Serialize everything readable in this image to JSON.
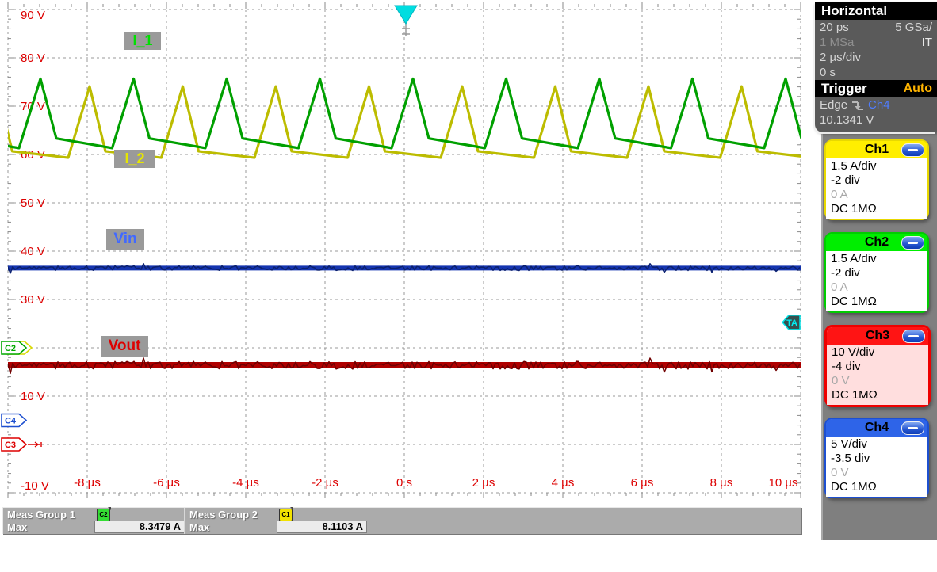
{
  "horizontal": {
    "title": "Horizontal",
    "sample_interval": "20 ps",
    "sample_rate": "5 GSa/",
    "memory": "1 MSa",
    "mode": "IT",
    "timebase": "2 µs/div",
    "position": "0 s"
  },
  "trigger_panel": {
    "title": "Trigger",
    "sweep": "Auto",
    "type": "Edge",
    "source": "Ch4",
    "level": "10.1341 V"
  },
  "channels": [
    {
      "name": "Ch1",
      "scale": "1.5 A/div",
      "position": "-2 div",
      "offset": "0 A",
      "coupling": "DC 1MΩ",
      "header_color": "#ffee00",
      "border_color": "#e8d800",
      "body_color": "#ffffff",
      "selected": false
    },
    {
      "name": "Ch2",
      "scale": "1.5 A/div",
      "position": "-2 div",
      "offset": "0 A",
      "coupling": "DC 1MΩ",
      "header_color": "#00ee00",
      "border_color": "#00cc00",
      "body_color": "#ffffff",
      "selected": false
    },
    {
      "name": "Ch3",
      "scale": "10 V/div",
      "position": "-4 div",
      "offset": "0 V",
      "coupling": "DC 1MΩ",
      "header_color": "#ff1414",
      "border_color": "#ee0000",
      "body_color": "#ffdede",
      "selected": true
    },
    {
      "name": "Ch4",
      "scale": "5 V/div",
      "position": "-3.5 div",
      "offset": "0 V",
      "coupling": "DC 1MΩ",
      "header_color": "#2e64e8",
      "border_color": "#1d4fd0",
      "body_color": "#ffffff",
      "selected": false
    }
  ],
  "trace_labels": {
    "i1": "I_1",
    "i2": "I_2",
    "vin": "Vin",
    "vout": "Vout"
  },
  "ground_markers": [
    {
      "label": "C1",
      "channel": "Ch1",
      "color": "#d8d800",
      "occluded": true
    },
    {
      "label": "C2",
      "channel": "Ch2",
      "color": "#00a800",
      "occluded": false
    },
    {
      "label": "C4",
      "channel": "Ch4",
      "color": "#1d4fd0",
      "occluded": false
    },
    {
      "label": "C3",
      "channel": "Ch3",
      "color": "#dd0000",
      "occluded": false
    }
  ],
  "meas": {
    "groups": [
      {
        "title": "Meas Group 1",
        "source_badge": "C2",
        "badge_color": "#33dd33",
        "stat": "Max",
        "value": "8.3479 A"
      },
      {
        "title": "Meas Group 2",
        "source_badge": "C1",
        "badge_color": "#f2e200",
        "stat": "Max",
        "value": "8.1103 A"
      }
    ]
  },
  "colors": {
    "axis_text": "#dd0000",
    "grid": "#999999",
    "trace_i1": "#00a000",
    "trace_i2": "#bcbc00",
    "trace_vin": "#1535b0",
    "trace_vout": "#b00000",
    "trigger_marker": "#00dde0",
    "label_bg": "#9a9a9a"
  },
  "chart_data": {
    "type": "line",
    "title": "",
    "x_axis": {
      "unit": "µs",
      "us_per_div": 2,
      "range_us": [
        -10,
        10
      ],
      "tick_values_us": [
        -8,
        -6,
        -4,
        -2,
        0,
        2,
        4,
        6,
        8,
        10
      ],
      "tick_labels": [
        "-8 µs",
        "-6 µs",
        "-4 µs",
        "-2 µs",
        "0 s",
        "2 µs",
        "4 µs",
        "6 µs",
        "8 µs",
        "10 µs"
      ]
    },
    "y_axis": {
      "unit": "V",
      "v_per_div": 10,
      "range_v": [
        -10,
        90
      ],
      "tick_values_v": [
        90,
        80,
        70,
        60,
        50,
        40,
        30,
        10,
        -10
      ],
      "tick_labels": [
        "90 V",
        "80 V",
        "70 V",
        "60 V",
        "50 V",
        "40 V",
        "30 V",
        "10 V",
        "-10 V"
      ]
    },
    "grid": {
      "divisions_x": 10,
      "divisions_y": 10,
      "style": "dashed"
    },
    "channels": [
      {
        "id": "Ch1",
        "scale_per_div": 1.5,
        "unit": "A",
        "position_div": -2
      },
      {
        "id": "Ch2",
        "scale_per_div": 1.5,
        "unit": "A",
        "position_div": -2
      },
      {
        "id": "Ch3",
        "scale_per_div": 10,
        "unit": "V",
        "position_div": -4
      },
      {
        "id": "Ch4",
        "scale_per_div": 5,
        "unit": "V",
        "position_div": -3.5
      }
    ],
    "series": [
      {
        "name": "I_1",
        "channel": "Ch2",
        "shape": "triangle_pulse_train",
        "period_us": 2.35,
        "first_peak_us": -9.18,
        "rise_us": 0.54,
        "fall_us": 0.4,
        "peak": 8.35,
        "after_fall": 6.5,
        "before_rise": 6.2,
        "unit": "A"
      },
      {
        "name": "I_2",
        "channel": "Ch1",
        "shape": "triangle_pulse_train",
        "period_us": 2.35,
        "first_peak_us": -7.94,
        "rise_us": 0.54,
        "fall_us": 0.4,
        "peak": 8.11,
        "after_fall": 6.1,
        "before_rise": 5.9,
        "unit": "A"
      },
      {
        "name": "Vin",
        "channel": "Ch4",
        "shape": "flat_noisy",
        "level": 15.75,
        "noise_pp": 0.5,
        "unit": "V"
      },
      {
        "name": "Vout",
        "channel": "Ch3",
        "shape": "flat_noisy",
        "level": 16.4,
        "noise_pp": 1.6,
        "unit": "V"
      }
    ],
    "trigger": {
      "level_v": 10.1341,
      "channel": "Ch4",
      "time_s": 0,
      "marker": "TA"
    }
  }
}
